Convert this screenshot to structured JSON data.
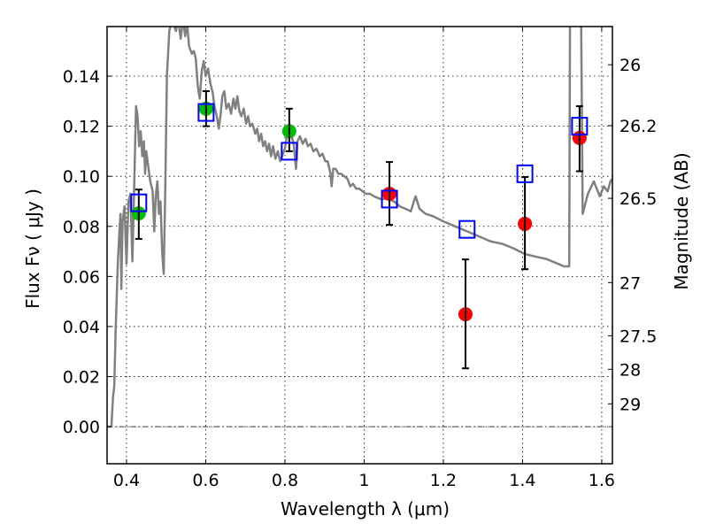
{
  "chart_data": {
    "type": "scatter",
    "title": "",
    "xlabel": "Wavelength  λ (μm)",
    "ylabel": "Flux  Fν  ( μJy )",
    "ylabel_right": "Magnitude (AB)",
    "xlim": [
      0.351,
      1.627
    ],
    "ylim": [
      -0.0148,
      0.1598
    ],
    "grid": true,
    "legend": "none",
    "x_ticks": [
      {
        "value": 0.4,
        "label": "0.4"
      },
      {
        "value": 0.6,
        "label": "0.6"
      },
      {
        "value": 0.8,
        "label": "0.8"
      },
      {
        "value": 1.0,
        "label": "1"
      },
      {
        "value": 1.2,
        "label": "1.2"
      },
      {
        "value": 1.4,
        "label": "1.4"
      },
      {
        "value": 1.6,
        "label": "1.6"
      }
    ],
    "y_ticks": [
      {
        "value": 0.0,
        "label": "0.00"
      },
      {
        "value": 0.02,
        "label": "0.02"
      },
      {
        "value": 0.04,
        "label": "0.04"
      },
      {
        "value": 0.06,
        "label": "0.06"
      },
      {
        "value": 0.08,
        "label": "0.08"
      },
      {
        "value": 0.1,
        "label": "0.10"
      },
      {
        "value": 0.12,
        "label": "0.12"
      },
      {
        "value": 0.14,
        "label": "0.14"
      }
    ],
    "mag_ticks": [
      {
        "mag": 26,
        "label": "26"
      },
      {
        "mag": 26.2,
        "label": "26.2"
      },
      {
        "mag": 26.5,
        "label": "26.5"
      },
      {
        "mag": 27,
        "label": "27"
      },
      {
        "mag": 27.5,
        "label": "27.5"
      },
      {
        "mag": 28,
        "label": "28"
      },
      {
        "mag": 29,
        "label": "29"
      }
    ],
    "colors": {
      "spectrum": "#808080",
      "detected_green": "#00c000",
      "detected_red": "#ff0000",
      "model_square": "#0000ff",
      "errorbar": "#000000"
    },
    "series": [
      {
        "name": "model-spectrum",
        "kind": "line",
        "points": [
          [
            0.351,
            0.0
          ],
          [
            0.362,
            0.0
          ],
          [
            0.366,
            0.012
          ],
          [
            0.369,
            0.016
          ],
          [
            0.373,
            0.04
          ],
          [
            0.378,
            0.065
          ],
          [
            0.382,
            0.078
          ],
          [
            0.385,
            0.085
          ],
          [
            0.387,
            0.055
          ],
          [
            0.39,
            0.082
          ],
          [
            0.395,
            0.088
          ],
          [
            0.4,
            0.065
          ],
          [
            0.405,
            0.09
          ],
          [
            0.41,
            0.093
          ],
          [
            0.415,
            0.066
          ],
          [
            0.42,
            0.1
          ],
          [
            0.424,
            0.128
          ],
          [
            0.428,
            0.124
          ],
          [
            0.432,
            0.112
          ],
          [
            0.436,
            0.118
          ],
          [
            0.44,
            0.108
          ],
          [
            0.444,
            0.114
          ],
          [
            0.447,
            0.101
          ],
          [
            0.45,
            0.11
          ],
          [
            0.455,
            0.104
          ],
          [
            0.46,
            0.098
          ],
          [
            0.466,
            0.094
          ],
          [
            0.47,
            0.078
          ],
          [
            0.474,
            0.092
          ],
          [
            0.478,
            0.098
          ],
          [
            0.482,
            0.085
          ],
          [
            0.486,
            0.09
          ],
          [
            0.49,
            0.07
          ],
          [
            0.494,
            0.061
          ],
          [
            0.498,
            0.096
          ],
          [
            0.502,
            0.14
          ],
          [
            0.508,
            0.158
          ],
          [
            0.515,
            0.162
          ],
          [
            0.52,
            0.16
          ],
          [
            0.525,
            0.158
          ],
          [
            0.53,
            0.163
          ],
          [
            0.537,
            0.155
          ],
          [
            0.543,
            0.163
          ],
          [
            0.548,
            0.156
          ],
          [
            0.553,
            0.161
          ],
          [
            0.558,
            0.152
          ],
          [
            0.565,
            0.149
          ],
          [
            0.57,
            0.15
          ],
          [
            0.575,
            0.147
          ],
          [
            0.58,
            0.136
          ],
          [
            0.585,
            0.131
          ],
          [
            0.59,
            0.142
          ],
          [
            0.595,
            0.146
          ],
          [
            0.6,
            0.14
          ],
          [
            0.606,
            0.143
          ],
          [
            0.612,
            0.137
          ],
          [
            0.618,
            0.133
          ],
          [
            0.622,
            0.128
          ],
          [
            0.628,
            0.124
          ],
          [
            0.633,
            0.119
          ],
          [
            0.638,
            0.125
          ],
          [
            0.642,
            0.132
          ],
          [
            0.647,
            0.134
          ],
          [
            0.652,
            0.127
          ],
          [
            0.658,
            0.129
          ],
          [
            0.664,
            0.125
          ],
          [
            0.67,
            0.131
          ],
          [
            0.675,
            0.127
          ],
          [
            0.68,
            0.132
          ],
          [
            0.685,
            0.126
          ],
          [
            0.69,
            0.124
          ],
          [
            0.696,
            0.127
          ],
          [
            0.702,
            0.121
          ],
          [
            0.707,
            0.124
          ],
          [
            0.712,
            0.12
          ],
          [
            0.718,
            0.121
          ],
          [
            0.725,
            0.117
          ],
          [
            0.73,
            0.119
          ],
          [
            0.735,
            0.114
          ],
          [
            0.74,
            0.117
          ],
          [
            0.745,
            0.112
          ],
          [
            0.75,
            0.114
          ],
          [
            0.755,
            0.11
          ],
          [
            0.76,
            0.113
          ],
          [
            0.765,
            0.108
          ],
          [
            0.77,
            0.112
          ],
          [
            0.776,
            0.107
          ],
          [
            0.782,
            0.11
          ],
          [
            0.788,
            0.106
          ],
          [
            0.795,
            0.109
          ],
          [
            0.8,
            0.111
          ],
          [
            0.805,
            0.116
          ],
          [
            0.81,
            0.118
          ],
          [
            0.815,
            0.117
          ],
          [
            0.822,
            0.113
          ],
          [
            0.828,
            0.103
          ],
          [
            0.832,
            0.114
          ],
          [
            0.838,
            0.116
          ],
          [
            0.845,
            0.113
          ],
          [
            0.852,
            0.115
          ],
          [
            0.858,
            0.112
          ],
          [
            0.865,
            0.113
          ],
          [
            0.872,
            0.11
          ],
          [
            0.88,
            0.111
          ],
          [
            0.888,
            0.108
          ],
          [
            0.895,
            0.109
          ],
          [
            0.902,
            0.106
          ],
          [
            0.908,
            0.106
          ],
          [
            0.915,
            0.101
          ],
          [
            0.918,
            0.096
          ],
          [
            0.922,
            0.103
          ],
          [
            0.928,
            0.103
          ],
          [
            0.935,
            0.101
          ],
          [
            0.942,
            0.101
          ],
          [
            0.95,
            0.1
          ],
          [
            0.958,
            0.099
          ],
          [
            0.965,
            0.096
          ],
          [
            0.972,
            0.097
          ],
          [
            0.98,
            0.095
          ],
          [
            0.988,
            0.095
          ],
          [
            0.996,
            0.094
          ],
          [
            1.005,
            0.093
          ],
          [
            1.015,
            0.093
          ],
          [
            1.025,
            0.092
          ],
          [
            1.04,
            0.091
          ],
          [
            1.06,
            0.091
          ],
          [
            1.075,
            0.09
          ],
          [
            1.09,
            0.088
          ],
          [
            1.105,
            0.087
          ],
          [
            1.118,
            0.086
          ],
          [
            1.13,
            0.092
          ],
          [
            1.14,
            0.087
          ],
          [
            1.155,
            0.085
          ],
          [
            1.175,
            0.084
          ],
          [
            1.2,
            0.082
          ],
          [
            1.23,
            0.08
          ],
          [
            1.26,
            0.078
          ],
          [
            1.29,
            0.076
          ],
          [
            1.32,
            0.074
          ],
          [
            1.35,
            0.073
          ],
          [
            1.38,
            0.071
          ],
          [
            1.405,
            0.069
          ],
          [
            1.43,
            0.068
          ],
          [
            1.46,
            0.067
          ],
          [
            1.49,
            0.065
          ],
          [
            1.505,
            0.064
          ],
          [
            1.518,
            0.064
          ],
          [
            1.52,
            0.165
          ],
          [
            1.548,
            0.165
          ],
          [
            1.552,
            0.085
          ],
          [
            1.565,
            0.093
          ],
          [
            1.58,
            0.098
          ],
          [
            1.595,
            0.092
          ],
          [
            1.605,
            0.096
          ],
          [
            1.615,
            0.094
          ],
          [
            1.622,
            0.098
          ],
          [
            1.627,
            0.099
          ]
        ]
      },
      {
        "name": "model-photometry",
        "kind": "open-square",
        "x": [
          0.431,
          0.601,
          0.811,
          1.064,
          1.26,
          1.406,
          1.544
        ],
        "y": [
          0.0894,
          0.1255,
          0.11,
          0.0909,
          0.0788,
          0.101,
          0.12
        ]
      },
      {
        "name": "observed",
        "kind": "filled-circle-with-errorbars",
        "x": [
          0.431,
          0.601,
          0.811,
          1.064,
          1.256,
          1.406,
          1.544
        ],
        "y": [
          0.0852,
          0.127,
          0.118,
          0.093,
          0.0449,
          0.081,
          0.1153
        ],
        "yerr_low": [
          0.075,
          0.12,
          0.11,
          0.0806,
          0.0233,
          0.0629,
          0.102
        ],
        "yerr_high": [
          0.0947,
          0.134,
          0.127,
          0.1057,
          0.0668,
          0.0997,
          0.128
        ],
        "color_group": [
          "green",
          "green",
          "green",
          "red",
          "red",
          "red",
          "red"
        ]
      }
    ]
  }
}
